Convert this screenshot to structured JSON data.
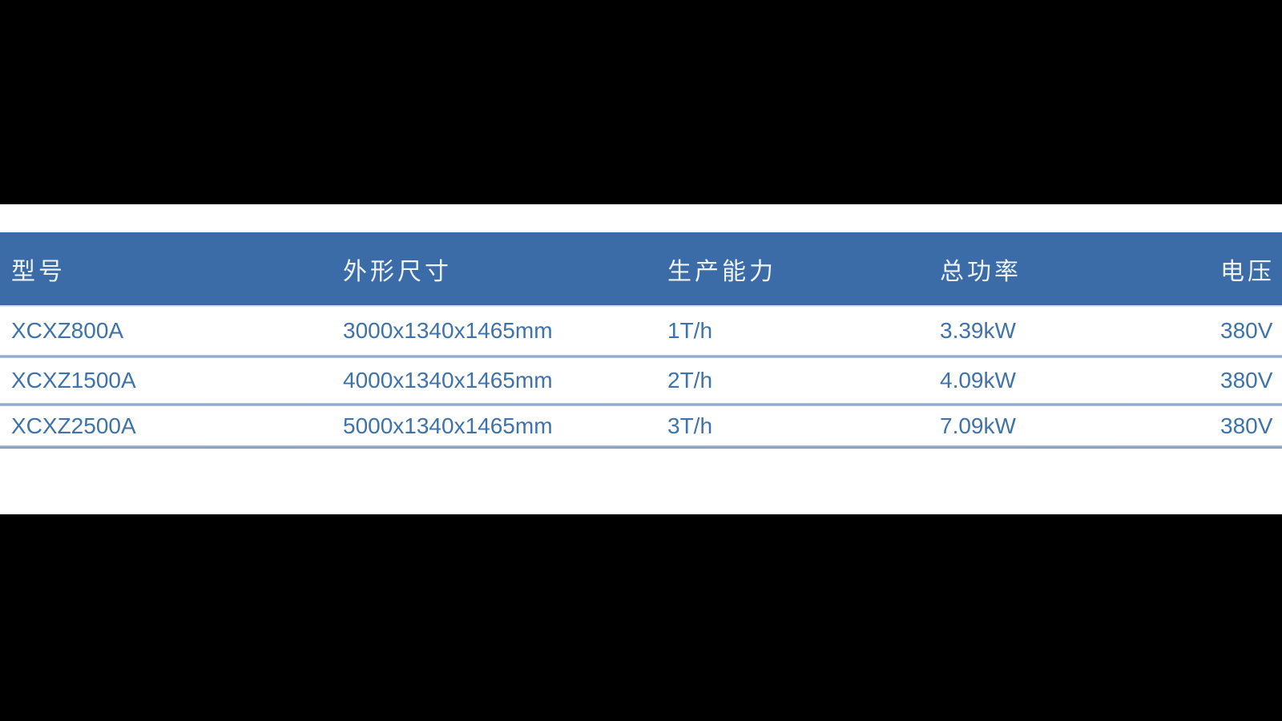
{
  "page": {
    "background_color": "#000000",
    "panel_color": "#ffffff"
  },
  "table": {
    "header": {
      "bg_color": "#3b6ca7",
      "text_color": "#eef3f8",
      "columns": [
        "型号",
        "外形尺寸",
        "生产能力",
        "总功率",
        "电压"
      ]
    },
    "body": {
      "text_color": "#3e72ab",
      "row_separator_color": "#8ca7ce",
      "bottom_border_color": "#8195b6"
    },
    "rows": [
      {
        "model": "XCXZ800A",
        "dimensions": "3000x1340x1465mm",
        "capacity": "1T/h",
        "power": "3.39kW",
        "voltage": "380V"
      },
      {
        "model": "XCXZ1500A",
        "dimensions": "4000x1340x1465mm",
        "capacity": "2T/h",
        "power": "4.09kW",
        "voltage": "380V"
      },
      {
        "model": "XCXZ2500A",
        "dimensions": "5000x1340x1465mm",
        "capacity": "3T/h",
        "power": "7.09kW",
        "voltage": "380V"
      }
    ]
  }
}
